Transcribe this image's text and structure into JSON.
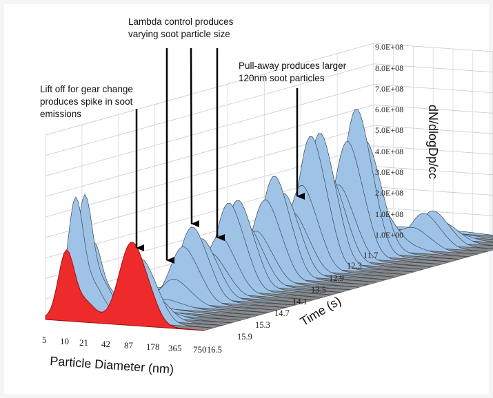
{
  "chart_data": {
    "type": "area",
    "subtype": "3d-waterfall",
    "xlabel": "Particle Diameter (nm)",
    "ylabel": "Time (s)",
    "zlabel": "dN/dlogDp/cc",
    "x_ticks": [
      "5",
      "10",
      "21",
      "42",
      "87",
      "178",
      "365",
      "750"
    ],
    "y_ticks": [
      "11.7",
      "12.3",
      "12.9",
      "13.5",
      "14.1",
      "14.7",
      "15.3",
      "15.9",
      "16.5"
    ],
    "z_ticks": [
      "1.0E+00",
      "1.0E+08",
      "2.0E+08",
      "3.0E+08",
      "4.0E+08",
      "5.0E+08",
      "6.0E+08",
      "7.0E+08",
      "8.0E+08",
      "9.0E+08"
    ],
    "zlim": [
      0,
      900000000
    ],
    "ylim": [
      11.7,
      16.5
    ],
    "highlight_time": 16.5,
    "peaks": [
      {
        "time": 16.5,
        "diameter_nm": 87,
        "value": 380000000
      },
      {
        "time": 16.3,
        "diameter_nm": 10,
        "value": 600000000
      },
      {
        "time": 15.3,
        "diameter_nm": 42,
        "value": 330000000
      },
      {
        "time": 14.7,
        "diameter_nm": 42,
        "value": 420000000
      },
      {
        "time": 14.1,
        "diameter_nm": 42,
        "value": 460000000
      },
      {
        "time": 13.5,
        "diameter_nm": 42,
        "value": 640000000
      },
      {
        "time": 12.9,
        "diameter_nm": 42,
        "value": 670000000
      },
      {
        "time": 12.3,
        "diameter_nm": 120,
        "value": 160000000
      }
    ],
    "colors": {
      "surface": "#9fc3e6",
      "highlight": "#ee2b2b",
      "floor": "#8e8e8e",
      "edge": "#3a4755"
    }
  },
  "annotations": [
    {
      "lines": [
        "Lift off for gear change",
        "produces spike in soot",
        "emissions"
      ]
    },
    {
      "lines": [
        "Lambda control produces",
        "varying soot particle size"
      ]
    },
    {
      "lines": [
        "Pull-away produces larger",
        "120nm soot particles"
      ]
    }
  ]
}
